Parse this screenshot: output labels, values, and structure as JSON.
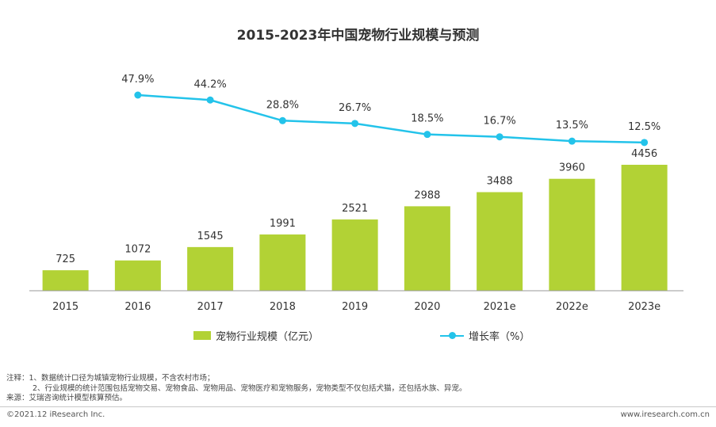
{
  "chart_data": {
    "type": "bar",
    "title": "2015-2023年中国宠物行业规模与预测",
    "categories": [
      "2015",
      "2016",
      "2017",
      "2018",
      "2019",
      "2020",
      "2021e",
      "2022e",
      "2023e"
    ],
    "series": [
      {
        "name": "宠物行业规模（亿元）",
        "type": "bar",
        "values": [
          725,
          1072,
          1545,
          1991,
          2521,
          2988,
          3488,
          3960,
          4456
        ],
        "labels": [
          "725",
          "1072",
          "1545",
          "1991",
          "2521",
          "2988",
          "3488",
          "3960",
          "4456"
        ],
        "color": "#b2d235"
      },
      {
        "name": "增长率（%）",
        "type": "line",
        "values": [
          null,
          47.9,
          44.2,
          28.8,
          26.7,
          18.5,
          16.7,
          13.5,
          12.5
        ],
        "labels": [
          "",
          "47.9%",
          "44.2%",
          "28.8%",
          "26.7%",
          "18.5%",
          "16.7%",
          "13.5%",
          "12.5%"
        ],
        "color": "#23c3ea"
      }
    ],
    "legend": "bottom",
    "grid": false
  },
  "notes": {
    "line1": "注释：1、数据统计口径为城镇宠物行业规模，不含农村市场；",
    "line2": "2、行业规模的统计范围包括宠物交易、宠物食品、宠物用品、宠物医疗和宠物服务，宠物类型不仅包括犬猫，还包括水族、异宠。",
    "source": "来源：艾瑞咨询统计模型核算预估。"
  },
  "footer": {
    "copyright": "©2021.12 iResearch Inc.",
    "website": "www.iresearch.com.cn"
  }
}
